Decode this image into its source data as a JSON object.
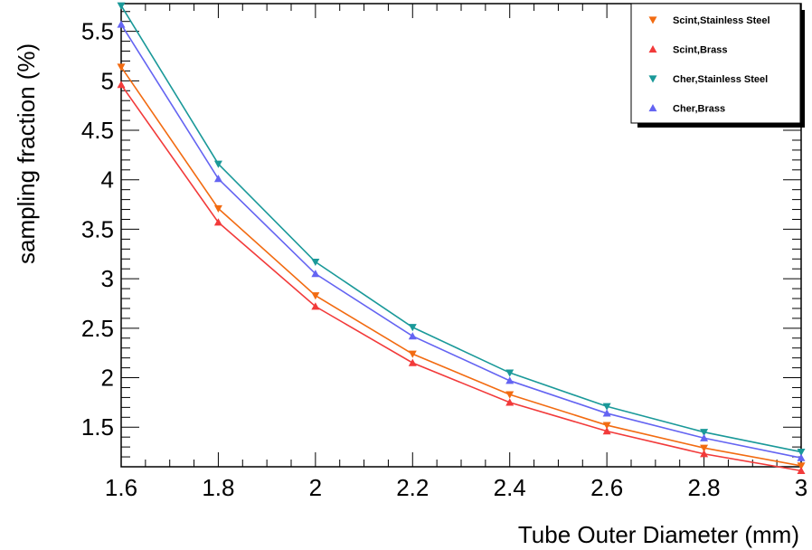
{
  "chart_data": {
    "type": "line",
    "title": "",
    "xlabel": "Tube Outer Diameter (mm)",
    "ylabel": "sampling fraction (%)",
    "xlim": [
      1.6,
      3.0
    ],
    "ylim": [
      1.1,
      5.78
    ],
    "x": [
      1.6,
      1.8,
      2.0,
      2.2,
      2.4,
      2.6,
      2.8,
      3.0
    ],
    "x_ticks": [
      "1.6",
      "1.8",
      "2",
      "2.2",
      "2.4",
      "2.6",
      "2.8",
      "3"
    ],
    "y_ticks": [
      "1.5",
      "2",
      "2.5",
      "3",
      "3.5",
      "4",
      "4.5",
      "5",
      "5.5"
    ],
    "grid": false,
    "legend_position": "top-right",
    "series": [
      {
        "name": "Scint,Stainless Steel",
        "color": "#f26b11",
        "marker": "triangle-down",
        "values": [
          5.14,
          3.71,
          2.83,
          2.24,
          1.83,
          1.52,
          1.29,
          1.11
        ]
      },
      {
        "name": "Scint,Brass",
        "color": "#f23a3a",
        "marker": "triangle-up",
        "values": [
          4.96,
          3.57,
          2.72,
          2.15,
          1.75,
          1.46,
          1.23,
          1.06
        ]
      },
      {
        "name": "Cher,Stainless Steel",
        "color": "#1a9999",
        "marker": "triangle-down",
        "values": [
          5.76,
          4.16,
          3.17,
          2.51,
          2.05,
          1.71,
          1.45,
          1.25
        ]
      },
      {
        "name": "Cher,Brass",
        "color": "#6464f2",
        "marker": "triangle-up",
        "values": [
          5.57,
          4.01,
          3.05,
          2.42,
          1.97,
          1.64,
          1.39,
          1.19
        ]
      }
    ]
  }
}
